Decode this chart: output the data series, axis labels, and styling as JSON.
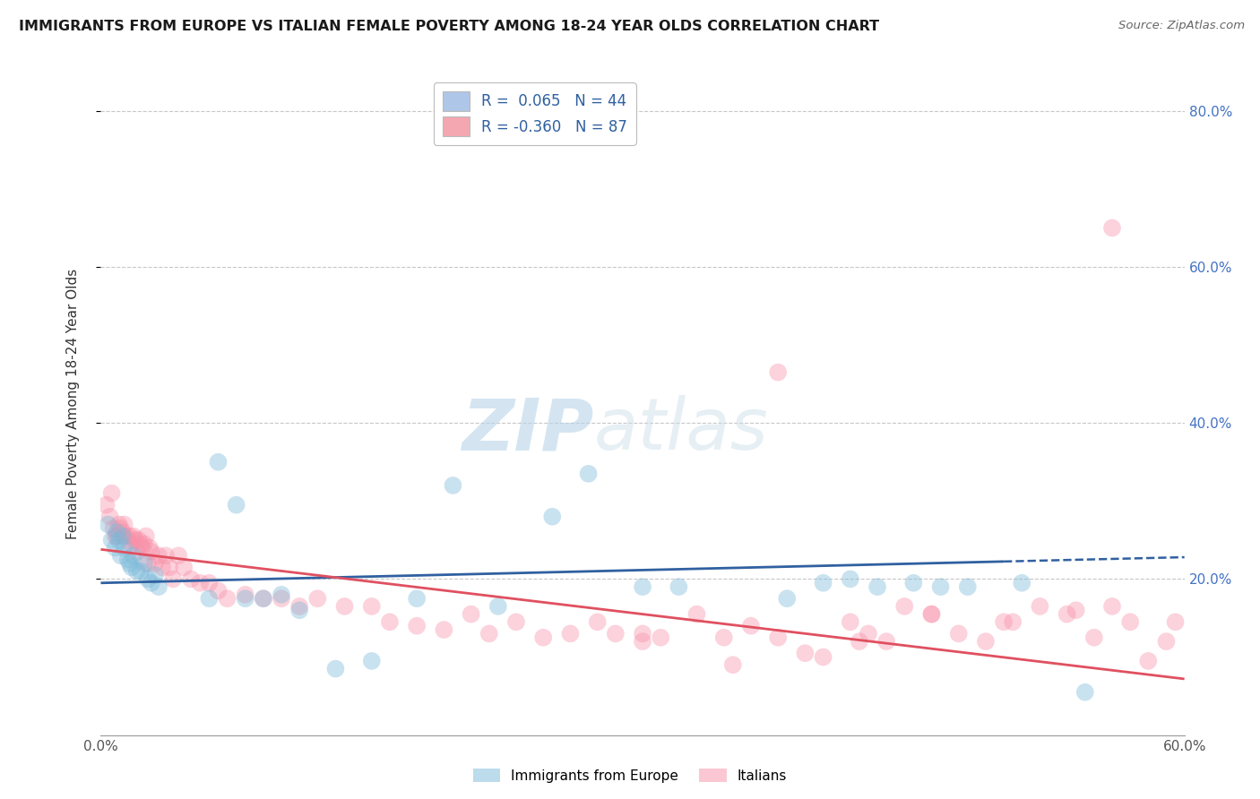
{
  "title": "IMMIGRANTS FROM EUROPE VS ITALIAN FEMALE POVERTY AMONG 18-24 YEAR OLDS CORRELATION CHART",
  "source": "Source: ZipAtlas.com",
  "ylabel": "Female Poverty Among 18-24 Year Olds",
  "xlim": [
    0,
    0.6
  ],
  "ylim": [
    0,
    0.85
  ],
  "yticks": [
    0.2,
    0.4,
    0.6,
    0.8
  ],
  "ytick_labels": [
    "20.0%",
    "40.0%",
    "60.0%",
    "80.0%"
  ],
  "xticks": [
    0.0,
    0.6
  ],
  "xtick_labels": [
    "0.0%",
    "60.0%"
  ],
  "legend_entries": [
    {
      "label": "R =  0.065   N = 44",
      "color": "#aec6e8"
    },
    {
      "label": "R = -0.360   N = 87",
      "color": "#f4a7b0"
    }
  ],
  "blue_color": "#7ab8d9",
  "pink_color": "#f890a8",
  "blue_line_color": "#3060a0",
  "pink_line_color": "#e05060",
  "blue_line_solid_end": 0.5,
  "blue_line_start_y": 0.195,
  "blue_line_end_y": 0.228,
  "pink_line_start_y": 0.238,
  "pink_line_end_y": 0.072,
  "blue_scatter_x": [
    0.004,
    0.006,
    0.008,
    0.009,
    0.01,
    0.011,
    0.012,
    0.013,
    0.015,
    0.016,
    0.017,
    0.018,
    0.02,
    0.022,
    0.024,
    0.026,
    0.028,
    0.03,
    0.032,
    0.06,
    0.065,
    0.075,
    0.08,
    0.09,
    0.1,
    0.11,
    0.13,
    0.15,
    0.175,
    0.195,
    0.22,
    0.25,
    0.27,
    0.3,
    0.32,
    0.38,
    0.4,
    0.415,
    0.43,
    0.45,
    0.465,
    0.48,
    0.51,
    0.545
  ],
  "blue_scatter_y": [
    0.27,
    0.25,
    0.24,
    0.26,
    0.25,
    0.23,
    0.255,
    0.24,
    0.225,
    0.22,
    0.215,
    0.23,
    0.21,
    0.21,
    0.22,
    0.2,
    0.195,
    0.205,
    0.19,
    0.175,
    0.35,
    0.295,
    0.175,
    0.175,
    0.18,
    0.16,
    0.085,
    0.095,
    0.175,
    0.32,
    0.165,
    0.28,
    0.335,
    0.19,
    0.19,
    0.175,
    0.195,
    0.2,
    0.19,
    0.195,
    0.19,
    0.19,
    0.195,
    0.055
  ],
  "pink_scatter_x": [
    0.003,
    0.005,
    0.006,
    0.007,
    0.008,
    0.009,
    0.01,
    0.011,
    0.012,
    0.013,
    0.014,
    0.015,
    0.016,
    0.017,
    0.018,
    0.019,
    0.02,
    0.021,
    0.022,
    0.023,
    0.024,
    0.025,
    0.026,
    0.027,
    0.028,
    0.03,
    0.032,
    0.034,
    0.036,
    0.038,
    0.04,
    0.043,
    0.046,
    0.05,
    0.055,
    0.06,
    0.065,
    0.07,
    0.08,
    0.09,
    0.1,
    0.11,
    0.12,
    0.135,
    0.15,
    0.16,
    0.175,
    0.19,
    0.205,
    0.215,
    0.23,
    0.245,
    0.26,
    0.275,
    0.285,
    0.3,
    0.31,
    0.33,
    0.345,
    0.36,
    0.375,
    0.39,
    0.4,
    0.415,
    0.425,
    0.435,
    0.445,
    0.46,
    0.475,
    0.49,
    0.505,
    0.52,
    0.535,
    0.55,
    0.56,
    0.375,
    0.42,
    0.46,
    0.5,
    0.54,
    0.56,
    0.57,
    0.58,
    0.59,
    0.595,
    0.3,
    0.35
  ],
  "pink_scatter_y": [
    0.295,
    0.28,
    0.31,
    0.265,
    0.255,
    0.255,
    0.27,
    0.265,
    0.26,
    0.27,
    0.255,
    0.25,
    0.255,
    0.245,
    0.255,
    0.25,
    0.235,
    0.25,
    0.245,
    0.24,
    0.245,
    0.255,
    0.22,
    0.24,
    0.235,
    0.22,
    0.23,
    0.215,
    0.23,
    0.215,
    0.2,
    0.23,
    0.215,
    0.2,
    0.195,
    0.195,
    0.185,
    0.175,
    0.18,
    0.175,
    0.175,
    0.165,
    0.175,
    0.165,
    0.165,
    0.145,
    0.14,
    0.135,
    0.155,
    0.13,
    0.145,
    0.125,
    0.13,
    0.145,
    0.13,
    0.13,
    0.125,
    0.155,
    0.125,
    0.14,
    0.125,
    0.105,
    0.1,
    0.145,
    0.13,
    0.12,
    0.165,
    0.155,
    0.13,
    0.12,
    0.145,
    0.165,
    0.155,
    0.125,
    0.65,
    0.465,
    0.12,
    0.155,
    0.145,
    0.16,
    0.165,
    0.145,
    0.095,
    0.12,
    0.145,
    0.12,
    0.09
  ],
  "watermark_zip": "ZIP",
  "watermark_atlas": "atlas",
  "background_color": "#ffffff"
}
